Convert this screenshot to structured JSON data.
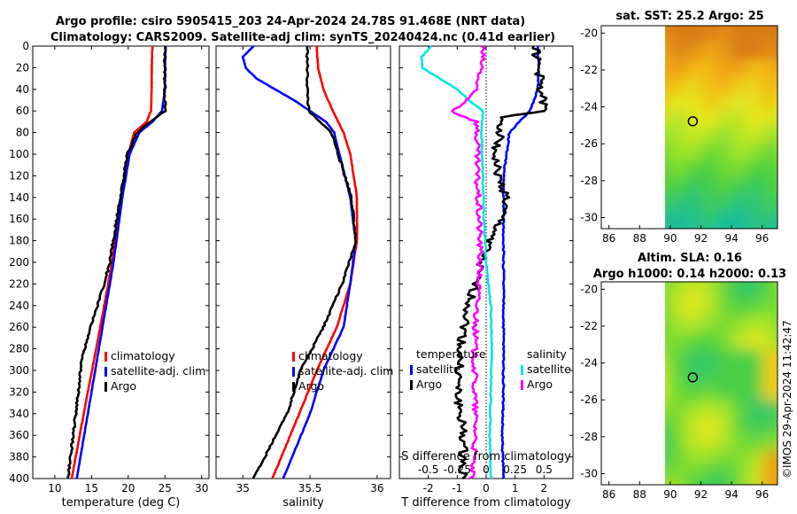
{
  "title": {
    "line1": "Argo profile: csiro 5905415_203 24-Apr-2024 24.78S 91.468E (NRT data)",
    "line2": "Climatology: CARS2009. Satellite-adj clim: synTS_20240424.nc (0.41d earlier)"
  },
  "credit": "©IMOS 29-Apr-2024 11:42:47",
  "colors": {
    "climatology": "#ff0000",
    "satellite": "#0000ff",
    "argo": "#000000",
    "satellite_s": "#00e5e5",
    "salinity": "#ff00ff"
  },
  "chart_data": [
    {
      "type": "line",
      "name": "temperature",
      "xlabel": "temperature (deg C)",
      "xlim": [
        7,
        31
      ],
      "xticks": [
        10,
        15,
        20,
        25,
        30
      ],
      "ylim": [
        0,
        400
      ],
      "yticks": [
        0,
        20,
        40,
        60,
        80,
        100,
        120,
        140,
        160,
        180,
        200,
        220,
        240,
        260,
        280,
        300,
        320,
        340,
        360,
        380,
        400
      ],
      "legend": [
        "climatology",
        "satellite-adj. clim",
        "Argo"
      ],
      "series": [
        {
          "name": "climatology",
          "color": "#ff0000",
          "depth": [
            0,
            20,
            40,
            60,
            70,
            80,
            100,
            140,
            200,
            260,
            320,
            400
          ],
          "values": [
            23.3,
            23.2,
            23.2,
            23.1,
            22.5,
            20.8,
            20.0,
            19.0,
            17.8,
            16.2,
            14.5,
            12.3
          ]
        },
        {
          "name": "satellite-adj. clim",
          "color": "#0000ff",
          "depth": [
            0,
            20,
            40,
            60,
            70,
            80,
            100,
            140,
            200,
            260,
            320,
            400
          ],
          "values": [
            25.1,
            25.0,
            25.0,
            24.6,
            23.3,
            21.5,
            20.2,
            19.2,
            18.0,
            16.5,
            15.0,
            13.0
          ]
        },
        {
          "name": "Argo",
          "color": "#000000",
          "depth": [
            0,
            20,
            40,
            60,
            70,
            80,
            100,
            140,
            200,
            230,
            260,
            290,
            320,
            400
          ],
          "values": [
            25.0,
            25.0,
            25.0,
            25.0,
            23.0,
            21.2,
            19.9,
            18.9,
            17.5,
            16.3,
            14.9,
            13.7,
            13.2,
            11.8
          ]
        }
      ]
    },
    {
      "type": "line",
      "name": "salinity",
      "xlabel": "salinity",
      "xlim": [
        34.8,
        36.1
      ],
      "xticks": [
        35,
        35.5,
        36
      ],
      "ylim": [
        0,
        400
      ],
      "legend": [
        "climatology",
        "satellite-adj. clim",
        "Argo"
      ],
      "series": [
        {
          "name": "climatology",
          "color": "#ff0000",
          "depth": [
            0,
            20,
            40,
            60,
            80,
            100,
            140,
            180,
            220,
            260,
            300,
            340,
            400
          ],
          "values": [
            35.55,
            35.56,
            35.6,
            35.67,
            35.75,
            35.8,
            35.85,
            35.85,
            35.8,
            35.7,
            35.55,
            35.42,
            35.22
          ]
        },
        {
          "name": "satellite-adj. clim",
          "color": "#0000ff",
          "depth": [
            0,
            10,
            20,
            30,
            50,
            70,
            80,
            100,
            140,
            180,
            220,
            260,
            300,
            340,
            400
          ],
          "values": [
            35.08,
            35.0,
            35.02,
            35.1,
            35.38,
            35.62,
            35.68,
            35.72,
            35.8,
            35.84,
            35.8,
            35.75,
            35.6,
            35.5,
            35.3
          ]
        },
        {
          "name": "Argo",
          "color": "#000000",
          "depth": [
            0,
            20,
            40,
            60,
            70,
            80,
            100,
            140,
            180,
            220,
            260,
            300,
            340,
            400
          ],
          "values": [
            35.48,
            35.48,
            35.48,
            35.49,
            35.57,
            35.66,
            35.71,
            35.81,
            35.84,
            35.74,
            35.6,
            35.43,
            35.33,
            35.08
          ]
        }
      ]
    },
    {
      "type": "line",
      "name": "difference",
      "xlabel": "T difference from climatology",
      "xlabel_top": "S difference from climatology",
      "xlim": [
        -3,
        3
      ],
      "xticks": [
        -2,
        -1,
        0,
        1,
        2
      ],
      "xlim_s": [
        -0.75,
        0.75
      ],
      "xticks_s": [
        "-0.5",
        "-0.25",
        "0",
        "0.25",
        "0.5"
      ],
      "ylim": [
        0,
        400
      ],
      "legend_t": {
        "title": "temperature",
        "items": [
          "satellite",
          "Argo"
        ]
      },
      "legend_s": {
        "title": "salinity",
        "items": [
          "satellite",
          "Argo"
        ]
      },
      "series": [
        {
          "name": "T satellite",
          "color": "#0000ff",
          "depth": [
            0,
            20,
            40,
            60,
            80,
            120,
            160,
            200,
            260,
            320,
            360,
            400
          ],
          "values": [
            1.8,
            1.8,
            1.8,
            1.5,
            0.8,
            0.6,
            0.6,
            0.6,
            0.6,
            0.6,
            0.55,
            0.6
          ]
        },
        {
          "name": "T Argo",
          "color": "#000000",
          "depth": [
            0,
            20,
            40,
            60,
            65,
            80,
            100,
            120,
            140,
            160,
            200,
            240,
            280,
            320,
            360,
            400
          ],
          "values": [
            1.7,
            1.8,
            1.9,
            2.0,
            0.6,
            0.5,
            0.3,
            0.4,
            0.7,
            0.5,
            -0.2,
            -0.6,
            -0.9,
            -1.0,
            -0.8,
            -0.8
          ]
        },
        {
          "name": "S satellite",
          "color": "#00e5e5",
          "depth": [
            0,
            10,
            20,
            40,
            50,
            60,
            80,
            120,
            160,
            200,
            240,
            280,
            320,
            360,
            400
          ],
          "values": [
            -0.47,
            -0.56,
            -0.55,
            -0.25,
            -0.15,
            -0.03,
            -0.04,
            -0.03,
            -0.02,
            0.0,
            0.04,
            0.05,
            0.04,
            0.03,
            0.04
          ]
        },
        {
          "name": "S Argo",
          "color": "#ff00ff",
          "depth": [
            0,
            20,
            40,
            55,
            60,
            70,
            80,
            120,
            160,
            200,
            240,
            280,
            320,
            360,
            400
          ],
          "values": [
            -0.03,
            -0.04,
            -0.1,
            -0.2,
            -0.3,
            -0.08,
            -0.08,
            -0.08,
            -0.06,
            -0.05,
            -0.08,
            -0.1,
            -0.1,
            -0.09,
            -0.13
          ]
        }
      ]
    },
    {
      "type": "heatmap",
      "name": "sst",
      "title": "sat. SST: 25.2 Argo: 25",
      "xlim": [
        85.5,
        97
      ],
      "xticks": [
        86,
        88,
        90,
        92,
        94,
        96
      ],
      "ylim": [
        -30.6,
        -19.6
      ],
      "yticks": [
        -20,
        -22,
        -24,
        -26,
        -28,
        -30
      ],
      "data_xlim": [
        90,
        97
      ],
      "marker": [
        91.47,
        -24.78
      ]
    },
    {
      "type": "heatmap",
      "name": "sla",
      "title_line1": "Altim. SLA: 0.16",
      "title_line2": "Argo h1000: 0.14 h2000: 0.13",
      "xlim": [
        85.5,
        97
      ],
      "xticks": [
        86,
        88,
        90,
        92,
        94,
        96
      ],
      "ylim": [
        -30.6,
        -19.6
      ],
      "yticks": [
        -20,
        -22,
        -24,
        -26,
        -28,
        -30
      ],
      "data_xlim": [
        90,
        97
      ],
      "marker": [
        91.47,
        -24.78
      ]
    }
  ]
}
